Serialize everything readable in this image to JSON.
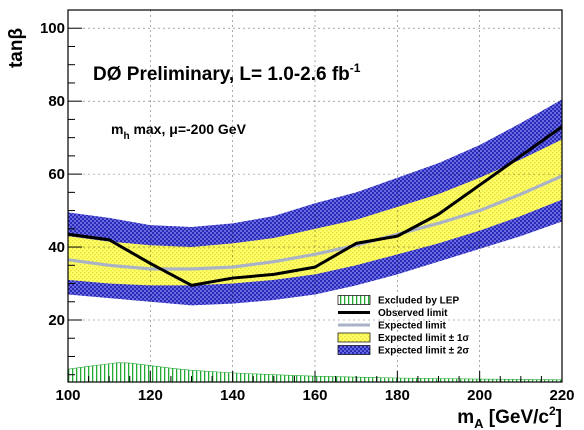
{
  "chart_data": {
    "type": "line",
    "title": "",
    "xlabel": "m_A [GeV/c^2]",
    "ylabel": "tanβ",
    "xlim": [
      100,
      220
    ],
    "ylim": [
      3,
      105
    ],
    "x_ticks": [
      100,
      120,
      140,
      160,
      180,
      200,
      220
    ],
    "y_ticks": [
      20,
      40,
      60,
      80,
      100
    ],
    "grid": true,
    "legend_placement": "bottom-right",
    "colors": {
      "lep": "#22aa33",
      "observed": "#000000",
      "expected": "#aab2c6",
      "band1": "#ffff66",
      "band2": "#4d4dd6"
    },
    "annotations": {
      "experiment": {
        "main": "DØ Preliminary, L= 1.0-2.6 fb",
        "sup": "-1"
      },
      "scenario": {
        "m": "m",
        "sub": "h",
        "rest": " max, μ=-200 GeV"
      }
    },
    "legend": [
      {
        "key": "lep",
        "label": "Excluded by LEP"
      },
      {
        "key": "observed",
        "label": "Observed limit"
      },
      {
        "key": "expected",
        "label": "Expected limit"
      },
      {
        "key": "band1",
        "label": "Expected limit ± 1σ"
      },
      {
        "key": "band2",
        "label": "Expected limit ± 2σ"
      }
    ],
    "series": [
      {
        "name": "Observed limit",
        "x": [
          100,
          110,
          120,
          130,
          140,
          150,
          160,
          170,
          180,
          190,
          200,
          210,
          220
        ],
        "y": [
          43.5,
          42,
          35.5,
          29.5,
          31.5,
          32.5,
          34.5,
          41,
          43,
          49,
          57,
          65,
          73
        ]
      },
      {
        "name": "Expected limit",
        "x": [
          100,
          110,
          120,
          130,
          140,
          150,
          160,
          170,
          180,
          190,
          200,
          210,
          220
        ],
        "y": [
          36.5,
          35,
          34,
          34,
          34.5,
          36,
          38,
          40.5,
          43.5,
          46.5,
          50,
          54.5,
          59.5
        ]
      }
    ],
    "bands": [
      {
        "name": "Expected limit ± 2σ",
        "x": [
          100,
          110,
          120,
          130,
          140,
          150,
          160,
          170,
          180,
          190,
          200,
          210,
          220
        ],
        "low": [
          27,
          26,
          25,
          24,
          24.5,
          25.5,
          27,
          29.5,
          32.5,
          36,
          39.5,
          43,
          47
        ],
        "high": [
          49.5,
          48,
          46,
          45.5,
          46.5,
          48.5,
          52,
          55,
          59,
          63,
          68,
          74,
          80.5
        ]
      },
      {
        "name": "Expected limit ± 1σ",
        "x": [
          100,
          110,
          120,
          130,
          140,
          150,
          160,
          170,
          180,
          190,
          200,
          210,
          220
        ],
        "low": [
          31,
          30,
          29.5,
          29.5,
          30,
          31,
          32.5,
          35,
          38,
          41,
          44.5,
          48.5,
          53
        ],
        "high": [
          43,
          41.5,
          40.5,
          40,
          41,
          42.5,
          45,
          47.5,
          51,
          54.5,
          59,
          64,
          69.5
        ]
      }
    ],
    "lep_excluded": {
      "name": "Excluded by LEP",
      "x": [
        100,
        105,
        110,
        112,
        115,
        120,
        125,
        130,
        140,
        150,
        160,
        180,
        200,
        220
      ],
      "y": [
        6.5,
        7.3,
        8,
        8.3,
        8.2,
        7.5,
        6.8,
        6.2,
        5.5,
        5,
        4.6,
        4.1,
        3.8,
        3.6
      ]
    }
  }
}
